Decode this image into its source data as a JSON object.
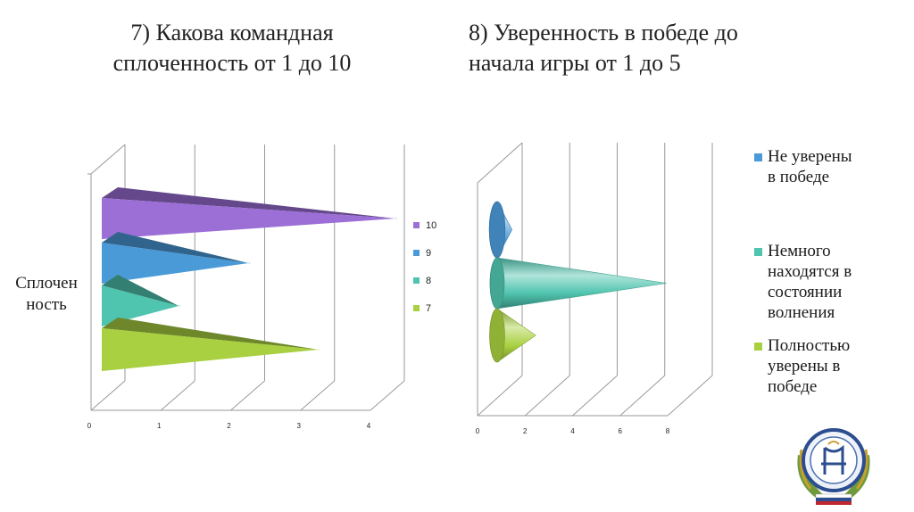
{
  "colors": {
    "purple": "#9b6fd6",
    "blue": "#4a9ad8",
    "teal": "#4fc4ae",
    "green": "#a8d040",
    "grid": "#9a9a9a"
  },
  "chart_data": [
    {
      "type": "bar",
      "orientation": "horizontal",
      "shape": "3d-pyramid",
      "title": "7)  Какова командная сплоченность от 1 до 10",
      "title_lines": [
        "7)  Какова командная",
        "сплоченность от 1 до 10"
      ],
      "category_label_lines": [
        "Сплочен",
        "ность"
      ],
      "xlim": [
        0,
        4
      ],
      "x_ticks": [
        "0",
        "1",
        "2",
        "3",
        "4"
      ],
      "series": [
        {
          "name": "10",
          "value": 4.1,
          "color": "#9b6fd6"
        },
        {
          "name": "9",
          "value": 2.0,
          "color": "#4a9ad8"
        },
        {
          "name": "8",
          "value": 1.0,
          "color": "#4fc4ae"
        },
        {
          "name": "7",
          "value": 3.0,
          "color": "#a8d040"
        }
      ],
      "legend": {
        "position": "right",
        "items": [
          "10",
          "9",
          "8",
          "7"
        ]
      }
    },
    {
      "type": "bar",
      "orientation": "horizontal",
      "shape": "3d-cone",
      "title": "8) Уверенность в победе до начала игры от 1 до 5",
      "title_lines": [
        "8) Уверенность в победе до",
        "начала игры от 1 до 5"
      ],
      "xlim": [
        0,
        8
      ],
      "x_ticks": [
        "0",
        "2",
        "4",
        "6",
        "8"
      ],
      "series": [
        {
          "name": "Не уверены в победе",
          "name_lines": [
            "Не уверены",
            "в победе"
          ],
          "value": 1,
          "color": "#4a9ad8"
        },
        {
          "name": "Немного находятся в состоянии волнения",
          "name_lines": [
            "Немного",
            "находятся в",
            "состоянии",
            "волнения"
          ],
          "value": 7.5,
          "color": "#4fc4ae"
        },
        {
          "name": "Полностью уверены в победе",
          "name_lines": [
            "Полностью",
            "уверены в",
            "победе"
          ],
          "value": 2,
          "color": "#a8d040"
        }
      ],
      "legend": {
        "position": "right"
      }
    }
  ]
}
